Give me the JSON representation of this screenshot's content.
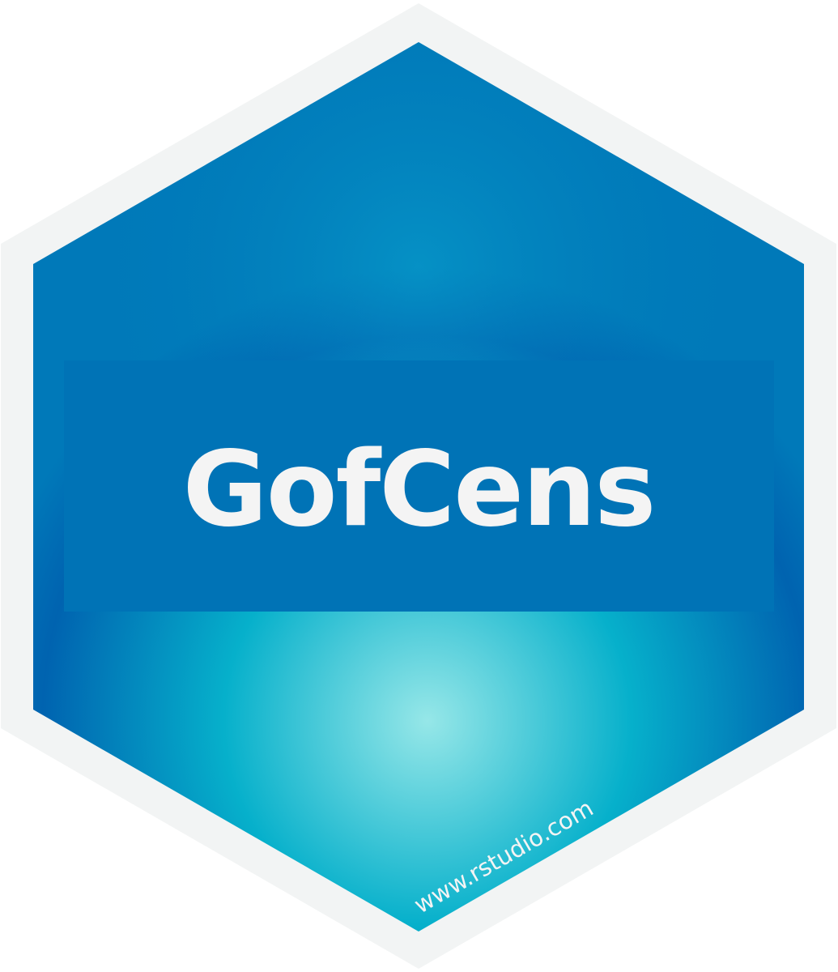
{
  "sticker": {
    "title": "GofCens",
    "url": "www.rstudio.com"
  },
  "colors": {
    "border": "#f2f4f4",
    "hex_top": "#0079b9",
    "hex_mid": "#0063b0",
    "hex_glow": "#96e7e8",
    "hex_glow_mid": "#06b0cb",
    "banner": "#0073b6",
    "text": "#f4f4f4"
  }
}
